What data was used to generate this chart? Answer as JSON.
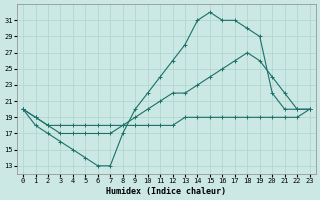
{
  "xlabel": "Humidex (Indice chaleur)",
  "bg_color": "#cce8e4",
  "grid_color": "#b0d8d0",
  "line_color": "#1a7068",
  "xlim": [
    -0.5,
    23.5
  ],
  "ylim": [
    12,
    33
  ],
  "xticks": [
    0,
    1,
    2,
    3,
    4,
    5,
    6,
    7,
    8,
    9,
    10,
    11,
    12,
    13,
    14,
    15,
    16,
    17,
    18,
    19,
    20,
    21,
    22,
    23
  ],
  "yticks": [
    13,
    15,
    17,
    19,
    21,
    23,
    25,
    27,
    29,
    31
  ],
  "curve1_x": [
    0,
    1,
    2,
    3,
    4,
    5,
    6,
    7,
    8,
    9,
    10,
    11,
    12,
    13,
    14,
    15,
    16,
    17,
    18,
    19,
    20,
    21,
    22,
    23
  ],
  "curve1_y": [
    20,
    18,
    17,
    16,
    15,
    14,
    13,
    13,
    17,
    20,
    22,
    24,
    26,
    28,
    31,
    32,
    31,
    31,
    30,
    29,
    22,
    20,
    20,
    20
  ],
  "curve2_x": [
    0,
    1,
    2,
    3,
    4,
    5,
    6,
    7,
    8,
    9,
    10,
    11,
    12,
    13,
    14,
    15,
    16,
    17,
    18,
    19,
    20,
    21,
    22,
    23
  ],
  "curve2_y": [
    20,
    19,
    18,
    17,
    17,
    17,
    17,
    17,
    18,
    19,
    20,
    21,
    22,
    22,
    23,
    24,
    25,
    26,
    27,
    26,
    24,
    22,
    20,
    20
  ],
  "curve3_x": [
    0,
    1,
    2,
    3,
    4,
    5,
    6,
    7,
    8,
    9,
    10,
    11,
    12,
    13,
    14,
    15,
    16,
    17,
    18,
    19,
    20,
    21,
    22,
    23
  ],
  "curve3_y": [
    20,
    19,
    18,
    18,
    18,
    18,
    18,
    18,
    18,
    18,
    18,
    18,
    18,
    19,
    19,
    19,
    19,
    19,
    19,
    19,
    19,
    19,
    19,
    20
  ]
}
